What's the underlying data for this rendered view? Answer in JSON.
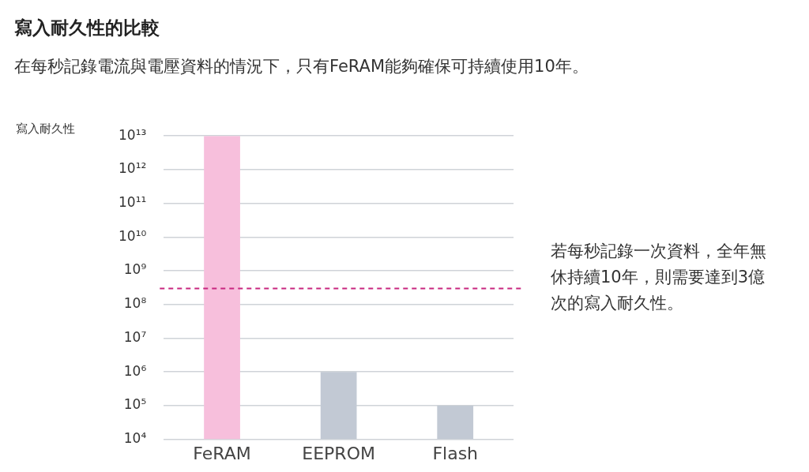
{
  "chart_data": {
    "type": "bar",
    "title": "寫入耐久性的比較",
    "subtitle": "在每秒記錄電流與電壓資料的情況下，只有FeRAM能夠確保可持續使用10年。",
    "ylabel": "寫入耐久性",
    "categories": [
      "FeRAM",
      "EEPROM",
      "Flash"
    ],
    "values": [
      10000000000000.0,
      1000000.0,
      100000.0
    ],
    "colors": [
      "#f7bfdc",
      "#c2c9d4",
      "#c2c9d4"
    ],
    "log": "y",
    "ylim": [
      10000.0,
      10000000000000.0
    ],
    "yticks": [
      {
        "value": 10000.0,
        "label": "10⁴"
      },
      {
        "value": 100000.0,
        "label": "10⁵"
      },
      {
        "value": 1000000.0,
        "label": "10⁶"
      },
      {
        "value": 10000000.0,
        "label": "10⁷"
      },
      {
        "value": 100000000.0,
        "label": "10⁸"
      },
      {
        "value": 1000000000.0,
        "label": "10⁹"
      },
      {
        "value": 10000000000.0,
        "label": "10¹⁰"
      },
      {
        "value": 100000000000.0,
        "label": "10¹¹"
      },
      {
        "value": 1000000000000.0,
        "label": "10¹²"
      },
      {
        "value": 10000000000000.0,
        "label": "10¹³"
      }
    ],
    "grid": "y",
    "legend": false,
    "ref_lines": [
      {
        "axis": "y",
        "value": 300000000.0,
        "color": "#c8267f",
        "line_style": "dashed"
      }
    ],
    "annotations": [
      "若每秒記錄一次資料，全年無休持續10年，則需要達到3億次的寫入耐久性。"
    ]
  }
}
